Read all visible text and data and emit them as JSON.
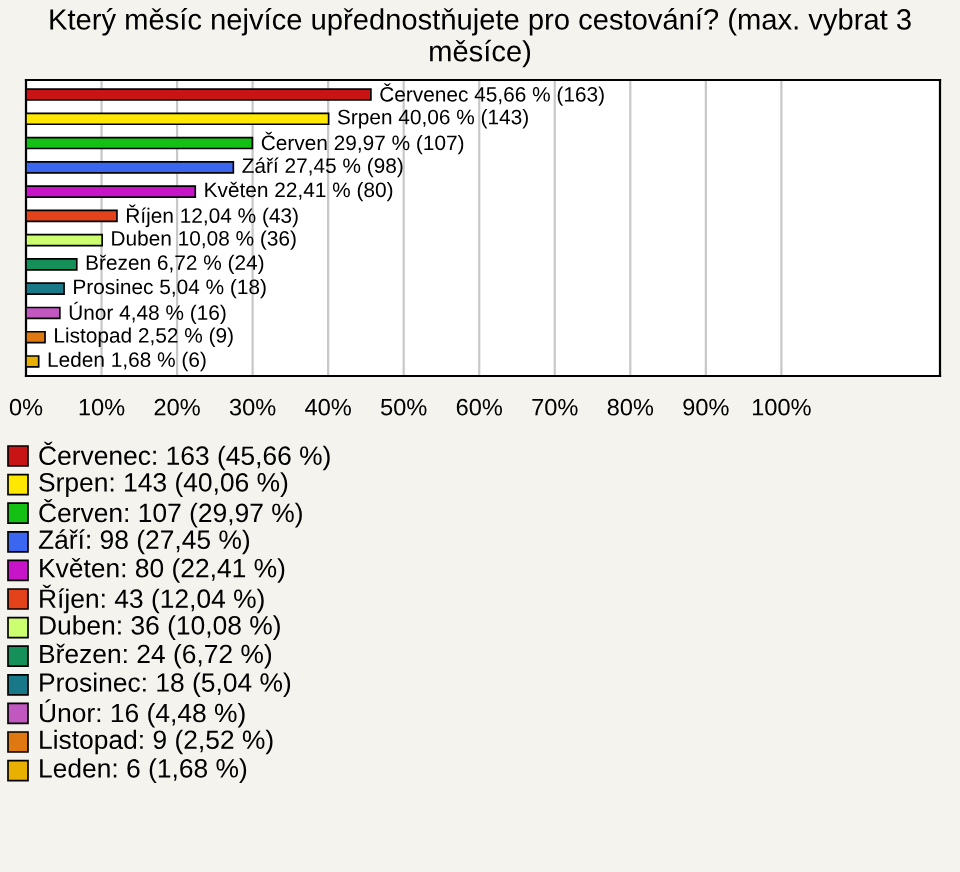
{
  "chart_data": {
    "type": "bar",
    "orientation": "horizontal",
    "title": "Který měsíc nejvíce upřednostňujete pro cestování? (max. vybrat 3 měsíce)",
    "categories": [
      null,
      null,
      null,
      null,
      null,
      null,
      null,
      null,
      null,
      null,
      null,
      null
    ],
    "values": [
      45.66,
      40.06,
      29.97,
      27.45,
      22.41,
      12.04,
      10.08,
      6.72,
      5.04,
      4.48,
      2.52,
      1.68
    ],
    "colors": [
      "#c81414",
      "#ffe800",
      "#14c014",
      "#3a66f0",
      "#c814c8",
      "#e4421a",
      "#ccff70",
      "#149058",
      "#187888",
      "#c058c0",
      "#e07812",
      "#e8b000"
    ],
    "value_labels": [
      "Červenec 45,66 % (163)",
      "Srpen 40,06 % (143)",
      "Červen 29,97 % (107)",
      "Září 27,45 % (98)",
      "Květen 22,41 % (80)",
      "Říjen 12,04 % (43)",
      "Duben 10,08 % (36)",
      "Březen 6,72 % (24)",
      "Prosinec 5,04 % (18)",
      "Únor 4,48 % (16)",
      "Listopad 2,52 % (9)",
      "Leden 1,68 % (6)"
    ],
    "xlim": [
      0,
      121
    ],
    "xticks": [
      {
        "value": 0,
        "label": "0%"
      },
      {
        "value": 10,
        "label": "10%"
      },
      {
        "value": 20,
        "label": "20%"
      },
      {
        "value": 30,
        "label": "30%"
      },
      {
        "value": 40,
        "label": "40%"
      },
      {
        "value": 50,
        "label": "50%"
      },
      {
        "value": 60,
        "label": "60%"
      },
      {
        "value": 70,
        "label": "70%"
      },
      {
        "value": 80,
        "label": "80%"
      },
      {
        "value": 90,
        "label": "90%"
      },
      {
        "value": 100,
        "label": "100%"
      }
    ],
    "grid": "x",
    "annotations": [
      "Červenec: 163 (45,66 %)",
      "Srpen: 143 (40,06 %)",
      "Červen: 107 (29,97 %)",
      "Září: 98 (27,45 %)",
      "Květen: 80 (22,41 %)",
      "Říjen: 43 (12,04 %)",
      "Duben: 36 (10,08 %)",
      "Březen: 24 (6,72 %)",
      "Prosinec: 18 (5,04 %)",
      "Únor: 16 (4,48 %)",
      "Listopad: 9 (2,52 %)",
      "Leden: 6 (1,68 %)"
    ]
  }
}
